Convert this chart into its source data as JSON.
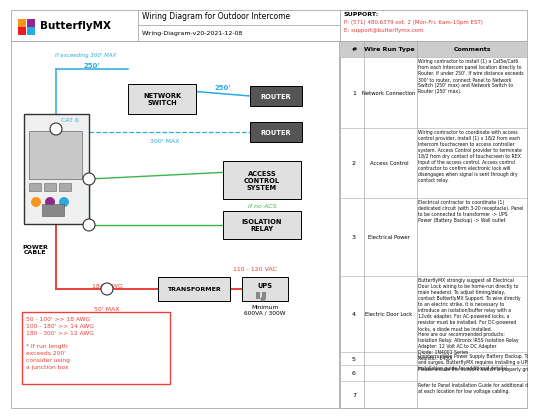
{
  "title": "Wiring Diagram for Outdoor Intercome",
  "subtitle": "Wiring-Diagram-v20-2021-12-08",
  "logo_text": "ButterflyMX",
  "support_line1": "SUPPORT:",
  "support_line2": "P: (571) 480.6379 ext. 2 (Mon-Fri, 6am-10pm EST)",
  "support_line3": "E: support@butterflymx.com",
  "bg_color": "#ffffff",
  "cyan": "#29abe2",
  "green": "#3bb54a",
  "red": "#e8403a",
  "dark_red": "#cc0000",
  "black": "#000000",
  "gray_dark": "#555555",
  "gray_box": "#d8d8d8",
  "logo_colors": [
    "#f7941d",
    "#92278f",
    "#ed1c24",
    "#29abe2"
  ],
  "row_nums": [
    "1",
    "2",
    "3",
    "4",
    "5",
    "6",
    "7"
  ],
  "row_labels": [
    "Network Connection",
    "Access Control",
    "Electrical Power",
    "Electric Door Lock",
    "",
    "",
    ""
  ],
  "row_comments": [
    "Wiring contractor to install (1) a Cat5e/Cat6\nfrom each Intercom panel location directly to\nRouter. If under 250'. If wire distance exceeds\n300' to router, connect Panel to Network\nSwitch (250' max) and Network Switch to\nRouter (250' max).",
    "Wiring contractor to coordinate with access\ncontrol provider, install (1) x 18/2 from each\nIntercom touchscreen to access controller\nsystem. Access Control provider to terminate\n18/2 from dry contact of touchscreen to REX\nInput of the access control. Access control\ncontractor to confirm electronic lock will\ndisengages when signal is sent through dry\ncontact relay.",
    "Electrical contractor to coordinate (1)\ndedicated circuit (with 3-20 receptacle). Panel\nto be connected to transformer -> UPS\nPower (Battery Backup) -> Wall outlet",
    "ButterflyMX strongly suggest all Electrical\nDoor Lock wiring to be home-run directly to\nmain headend. To adjust timing/delay,\ncontact ButterflyMX Support. To wire directly\nto an electric strike, it is necessary to\nintroduce an isolation/buffer relay with a\n12vdc adapter. For AC-powered locks, a\nresistor must be installed. For DC-powered\nlocks, a diode must be installed.\nHere are our recommended products:\nIsolation Relay: Altronix IR5S Isolation Relay\nAdapter: 12 Volt AC to DC Adapter\nDiode: 1N4001 Series\nResistor: 1450i",
    "Uninterruptible Power Supply Battery Backup. To prevent voltage drops\nand surges, ButterflyMX requires installing a UPS device (see panel\ninstallation guide for additional details).",
    "Please ensure the network switch is properly grounded.",
    "Refer to Panel Installation Guide for additional details. Leave 6' service loop\nat each location for low voltage cabling."
  ],
  "awg_text": "50 - 100' >> 18 AWG\n100 - 180' >> 14 AWG\n180 - 300' >> 12 AWG\n\n* If run length\nexceeds 200'\nconsider using\na junction box"
}
